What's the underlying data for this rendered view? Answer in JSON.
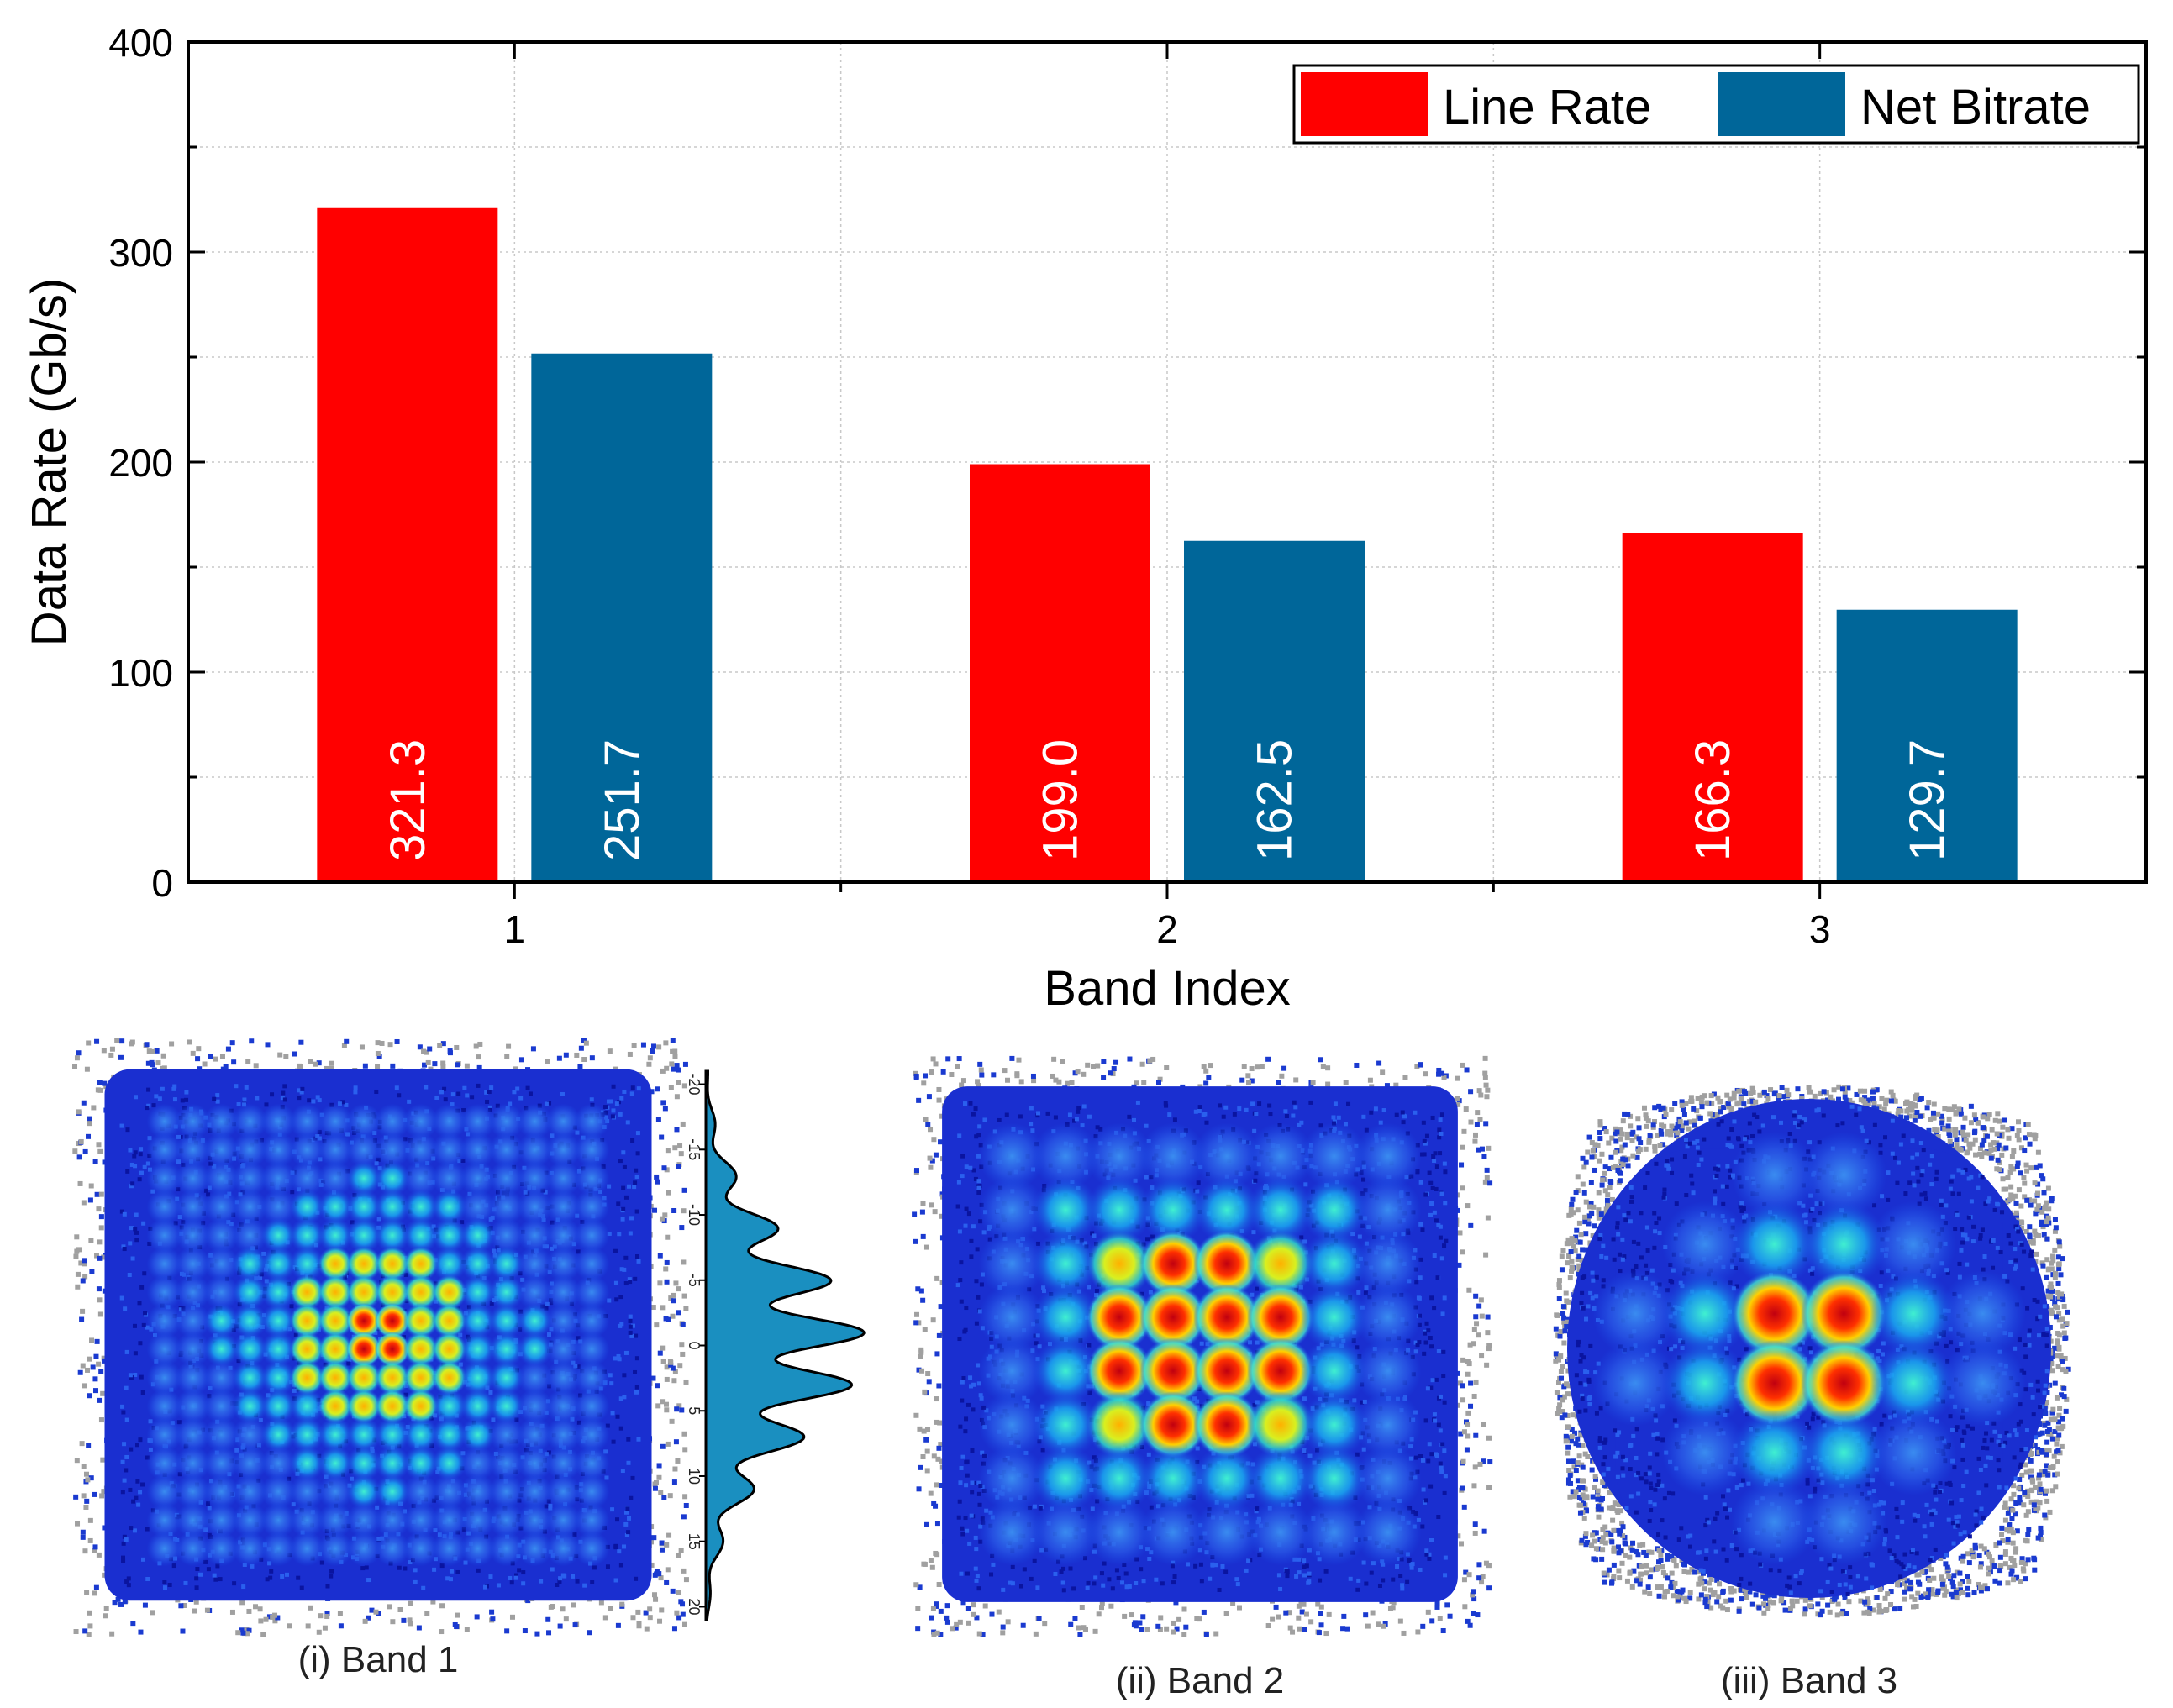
{
  "chart_data": {
    "type": "bar",
    "xlabel": "Band Index",
    "ylabel": "Data Rate (Gb/s)",
    "ylim": [
      0,
      400
    ],
    "yticks": [
      "0",
      "100",
      "200",
      "300",
      "400"
    ],
    "categories": [
      "1",
      "2",
      "3"
    ],
    "grid": true,
    "legend_position": "top-right",
    "series": [
      {
        "name": "Line Rate",
        "color": "#ff0000",
        "values": [
          321.3,
          199.0,
          166.3
        ],
        "labels": [
          "321.3",
          "199.0",
          "166.3"
        ]
      },
      {
        "name": "Net Bitrate",
        "color": "#006699",
        "values": [
          251.7,
          162.5,
          129.7
        ],
        "labels": [
          "251.7",
          "162.5",
          "129.7"
        ]
      }
    ]
  },
  "insets": {
    "captions": [
      "(i) Band 1",
      "(ii) Band 2",
      "(iii) Band 3"
    ],
    "constellations": [
      {
        "name": "band-1",
        "grid_size": 16
      },
      {
        "name": "band-2",
        "grid_size": 8
      },
      {
        "name": "band-3",
        "grid_size": 6
      }
    ],
    "histogram": {
      "ticks": [
        "-20",
        "-15",
        "-10",
        "-5",
        "0",
        "5",
        "10",
        "15",
        "20"
      ],
      "range": [
        -21,
        21
      ]
    }
  }
}
